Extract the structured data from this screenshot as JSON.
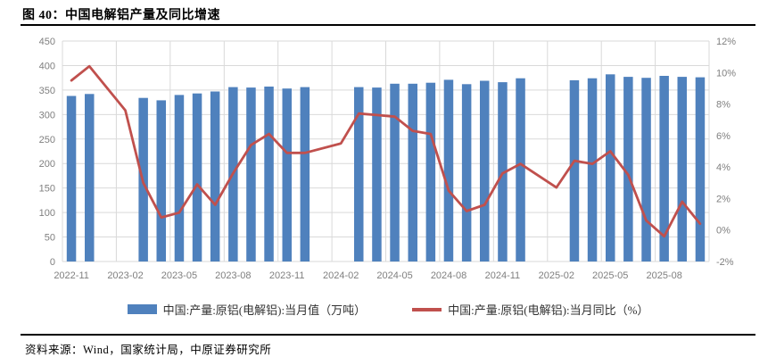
{
  "figure": {
    "title": "图 40：中国电解铝产量及同比增速",
    "source": "资料来源：Wind，国家统计局，中原证券研究所"
  },
  "chart_data": {
    "type": "bar",
    "subtype": "bar+line combo, dual axis",
    "grid": true,
    "legend_position": "bottom",
    "months": [
      "2022-11",
      "2022-12",
      "2023-01",
      "2023-02",
      "2023-03",
      "2023-04",
      "2023-05",
      "2023-06",
      "2023-07",
      "2023-08",
      "2023-09",
      "2023-10",
      "2023-11",
      "2023-12",
      "2024-01",
      "2024-02",
      "2024-03",
      "2024-04",
      "2024-05",
      "2024-06",
      "2024-07",
      "2024-08",
      "2024-09",
      "2024-10",
      "2024-11",
      "2024-12",
      "2025-01",
      "2025-02",
      "2025-03",
      "2025-04",
      "2025-05",
      "2025-06",
      "2025-07",
      "2025-08",
      "2025-09",
      "2025-10"
    ],
    "x_tick_labels": [
      "2022-11",
      "2023-02",
      "2023-05",
      "2023-08",
      "2023-11",
      "2024-02",
      "2024-05",
      "2024-08",
      "2024-11",
      "2025-02",
      "2025-05",
      "2025-08"
    ],
    "left_axis": {
      "min": 0,
      "max": 450,
      "step": 50,
      "unit": "万吨"
    },
    "right_axis": {
      "min_pct": -2,
      "max_pct": 12,
      "step_pct": 2,
      "unit": "%"
    },
    "series": [
      {
        "name": "中国:产量:原铝(电解铝):当月值（万吨）",
        "type": "bar",
        "axis": "left",
        "color": "#4F81BD",
        "values": [
          338,
          342,
          null,
          null,
          334,
          329,
          340,
          343,
          347,
          356,
          355,
          357,
          353,
          356,
          null,
          null,
          356,
          355,
          363,
          363,
          365,
          371,
          362,
          369,
          366,
          374,
          null,
          null,
          370,
          374,
          382,
          377,
          375,
          379,
          377,
          376
        ]
      },
      {
        "name": "中国:产量:原铝(电解铝):当月同比（%）",
        "type": "line",
        "axis": "right",
        "color": "#C0504D",
        "values": [
          9.5,
          10.4,
          null,
          7.6,
          3.0,
          0.8,
          1.1,
          2.9,
          1.6,
          3.6,
          5.4,
          6.1,
          4.9,
          4.9,
          null,
          5.5,
          7.4,
          7.3,
          7.2,
          6.3,
          6.1,
          2.5,
          1.2,
          1.6,
          3.6,
          4.2,
          null,
          2.7,
          4.4,
          4.2,
          5.0,
          3.5,
          0.6,
          -0.4,
          1.8,
          0.4
        ]
      }
    ]
  }
}
